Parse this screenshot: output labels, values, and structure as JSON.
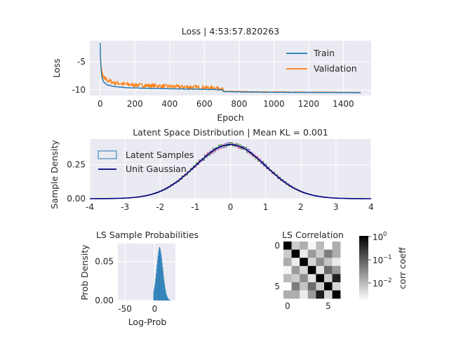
{
  "chart_data": [
    {
      "type": "line",
      "title": "Loss | 4:53:57.820263",
      "xlabel": "Epoch",
      "ylabel": "Loss",
      "xlim": [
        -60,
        1560
      ],
      "ylim": [
        -11,
        -1.2
      ],
      "xticks": [
        "0",
        "200",
        "400",
        "600",
        "800",
        "1000",
        "1200",
        "1400"
      ],
      "yticks": [
        "-5",
        "-10"
      ],
      "legend_position": "top-right",
      "grid": true,
      "series": [
        {
          "name": "Train",
          "color": "#1f77b4",
          "x": [
            0,
            2,
            5,
            10,
            20,
            40,
            80,
            150,
            250,
            400,
            500,
            600,
            700,
            710,
            800,
            900,
            1000,
            1200,
            1400,
            1500
          ],
          "y": [
            -1.6,
            -4.5,
            -6.5,
            -7.8,
            -8.6,
            -9.1,
            -9.4,
            -9.6,
            -9.7,
            -9.8,
            -9.85,
            -9.9,
            -9.95,
            -10.3,
            -10.35,
            -10.4,
            -10.42,
            -10.45,
            -10.47,
            -10.48
          ]
        },
        {
          "name": "Validation",
          "color": "#ff7f0e",
          "x": [
            0,
            2,
            5,
            10,
            20,
            40,
            80,
            150,
            250,
            400,
            500,
            600,
            700,
            710,
            800,
            900,
            1000,
            1200,
            1400,
            1500
          ],
          "y": [
            -3.5,
            -4.2,
            -5.8,
            -7.0,
            -7.8,
            -8.3,
            -8.7,
            -9.0,
            -9.2,
            -9.4,
            -9.5,
            -9.6,
            -9.7,
            -10.25,
            -10.3,
            -10.35,
            -10.38,
            -10.42,
            -10.45,
            -10.47
          ]
        }
      ]
    },
    {
      "type": "line",
      "title": "Latent Space Distribution | Mean KL = 0.001",
      "xlabel": "",
      "ylabel": "Sample Density",
      "xlim": [
        -4,
        4
      ],
      "ylim": [
        0,
        0.44
      ],
      "xticks": [
        "-4",
        "-3",
        "-2",
        "-1",
        "0",
        "1",
        "2",
        "3",
        "4"
      ],
      "yticks": [
        "0.00",
        "0.25"
      ],
      "legend_position": "top-left",
      "grid": true,
      "legend": [
        "Latent Samples",
        "Unit Gaussian"
      ],
      "histogram_colors": [
        "#3b4cc0",
        "#6a5acd",
        "#9b59b6",
        "#e377c2",
        "#ff6b6b",
        "#2ca02c"
      ],
      "gaussian_color": "#000080"
    },
    {
      "type": "bar",
      "title": "LS Sample Probabilities",
      "xlabel": "Log-Prob",
      "ylabel": "Prob Density",
      "xlim": [
        -62,
        35
      ],
      "ylim": [
        0,
        0.073
      ],
      "xticks": [
        "-50",
        "0"
      ],
      "yticks": [
        "0.00",
        "0.05"
      ],
      "color": "#1f77b4",
      "histogram_mean": 8,
      "histogram_std": 5.8,
      "histogram_range": [
        -2,
        28
      ]
    },
    {
      "type": "heatmap",
      "title": "LS Correlation",
      "xticks": [
        "0",
        "5"
      ],
      "yticks": [
        "0",
        "5"
      ],
      "colorbar_label": "corr coeff",
      "colorbar_ticks": [
        "10",
        "10",
        "10"
      ],
      "colorbar_exponents": [
        "0",
        "−1",
        "−2"
      ],
      "size": 7,
      "values": [
        [
          1.0,
          0.01,
          0.02,
          0.004,
          0.015,
          0.003,
          0.02
        ],
        [
          0.01,
          1.0,
          0.005,
          0.03,
          0.01,
          0.06,
          0.02
        ],
        [
          0.02,
          0.005,
          1.0,
          0.008,
          0.04,
          0.012,
          0.005
        ],
        [
          0.004,
          0.03,
          0.008,
          1.0,
          0.006,
          0.09,
          0.03
        ],
        [
          0.015,
          0.01,
          0.04,
          0.006,
          1.0,
          0.01,
          0.5
        ],
        [
          0.003,
          0.06,
          0.012,
          0.09,
          0.01,
          1.0,
          0.008
        ],
        [
          0.02,
          0.02,
          0.005,
          0.03,
          0.5,
          0.008,
          1.0
        ]
      ]
    }
  ]
}
